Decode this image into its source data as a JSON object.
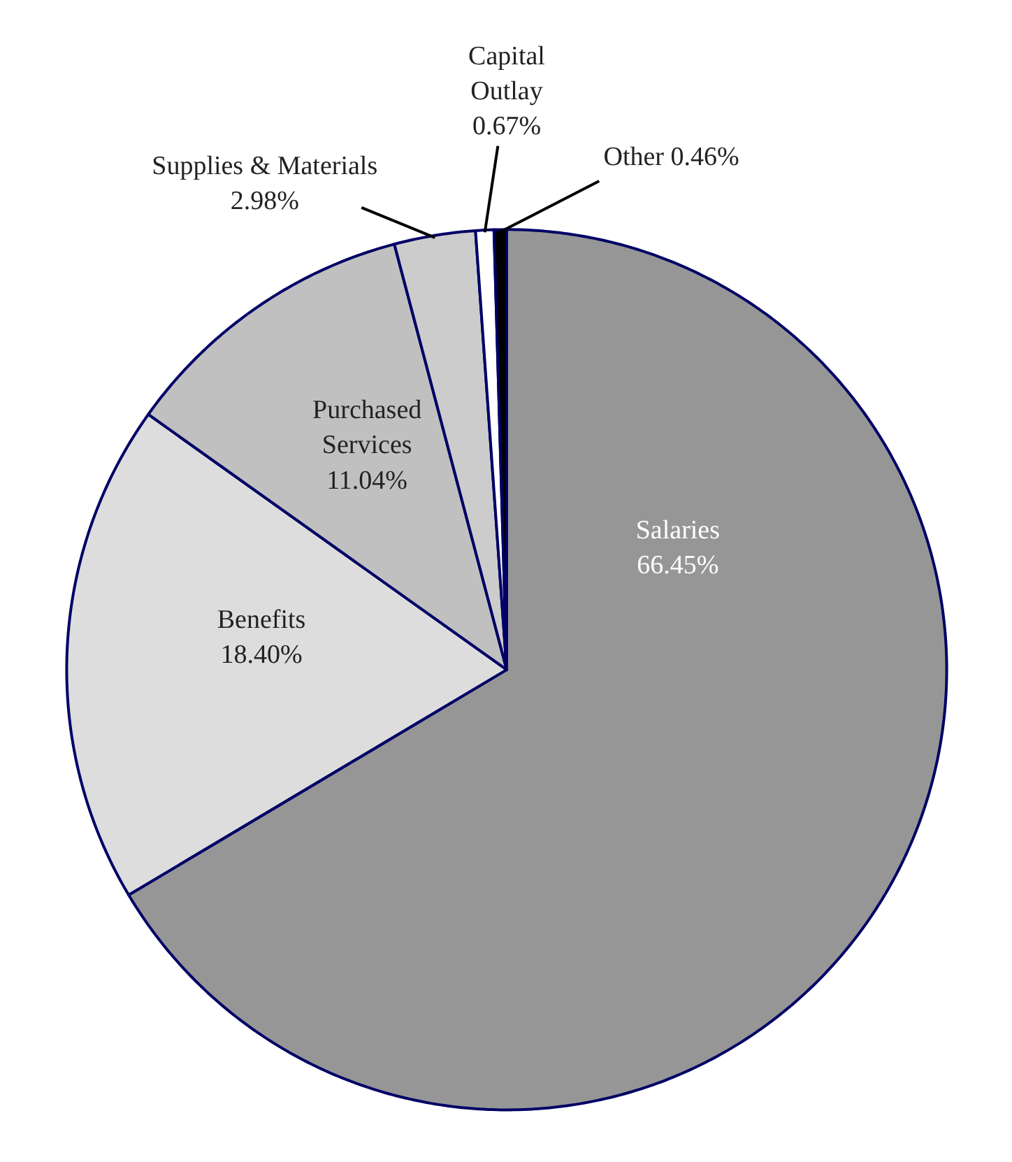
{
  "chart_data": {
    "type": "pie",
    "categories": [
      "Salaries",
      "Benefits",
      "Purchased Services",
      "Supplies & Materials",
      "Capital Outlay",
      "Other"
    ],
    "values": [
      66.45,
      18.4,
      11.04,
      2.98,
      0.67,
      0.46
    ],
    "value_labels": [
      "66.45%",
      "18.40%",
      "11.04%",
      "2.98%",
      "0.67%",
      "0.46%"
    ],
    "colors": [
      "#969696",
      "#dddddd",
      "#c0c0c0",
      "#cccccc",
      "#ffffff",
      "#000000"
    ]
  }
}
